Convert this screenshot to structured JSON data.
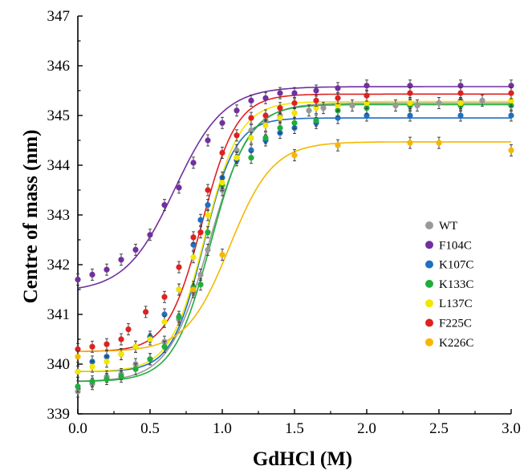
{
  "chart_data": {
    "type": "scatter",
    "title": "",
    "xlabel": "GdHCl (M)",
    "ylabel": "Centre of mass (nm)",
    "xlim": [
      0.0,
      3.0
    ],
    "ylim": [
      339,
      347
    ],
    "x_ticks": [
      "0.0",
      "0.5",
      "1.0",
      "1.5",
      "2.0",
      "2.5",
      "3.0"
    ],
    "y_ticks": [
      "339",
      "340",
      "341",
      "342",
      "343",
      "344",
      "345",
      "346",
      "347"
    ],
    "legend_position": "right-middle",
    "fit_curves": true,
    "series": [
      {
        "name": "WT",
        "color": "#999999",
        "x": [
          0.0,
          0.1,
          0.2,
          0.3,
          0.4,
          0.5,
          0.6,
          0.7,
          0.8,
          0.85,
          0.9,
          1.0,
          1.1,
          1.2,
          1.3,
          1.4,
          1.5,
          1.6,
          1.7,
          1.8,
          1.9,
          2.0,
          2.2,
          2.35,
          2.5,
          2.65,
          2.8,
          3.0
        ],
        "y": [
          339.45,
          339.6,
          339.75,
          339.8,
          340.0,
          340.1,
          340.45,
          340.9,
          341.45,
          341.8,
          342.3,
          343.5,
          344.3,
          344.7,
          344.9,
          345.0,
          345.05,
          345.1,
          345.15,
          345.2,
          345.2,
          345.25,
          345.2,
          345.2,
          345.25,
          345.3,
          345.3,
          345.3
        ],
        "fit": {
          "low": 339.65,
          "high": 345.25,
          "mid": 0.91,
          "slope": 0.14
        }
      },
      {
        "name": "F104C",
        "color": "#7030a0",
        "x": [
          0.0,
          0.1,
          0.2,
          0.3,
          0.4,
          0.5,
          0.6,
          0.7,
          0.8,
          0.9,
          1.0,
          1.1,
          1.2,
          1.3,
          1.4,
          1.5,
          1.65,
          1.8,
          2.0,
          2.3,
          2.65,
          3.0
        ],
        "y": [
          341.7,
          341.8,
          341.9,
          342.1,
          342.3,
          342.6,
          343.2,
          343.55,
          344.05,
          344.5,
          344.85,
          345.1,
          345.3,
          345.35,
          345.45,
          345.45,
          345.5,
          345.55,
          345.6,
          345.6,
          345.6,
          345.6
        ],
        "fit": {
          "low": 341.45,
          "high": 345.58,
          "mid": 0.67,
          "slope": 0.17
        }
      },
      {
        "name": "K107C",
        "color": "#1f6fc3",
        "x": [
          0.0,
          0.1,
          0.2,
          0.3,
          0.4,
          0.5,
          0.6,
          0.7,
          0.8,
          0.85,
          0.9,
          1.0,
          1.1,
          1.2,
          1.3,
          1.4,
          1.5,
          1.65,
          1.8,
          2.0,
          2.3,
          2.65,
          3.0
        ],
        "y": [
          339.85,
          340.05,
          340.15,
          340.2,
          340.35,
          340.55,
          341.0,
          341.5,
          342.4,
          342.9,
          343.2,
          343.75,
          344.1,
          344.3,
          344.5,
          344.65,
          344.75,
          344.85,
          344.95,
          345.0,
          345.0,
          345.0,
          345.0
        ],
        "fit": {
          "low": 339.85,
          "high": 344.95,
          "mid": 0.87,
          "slope": 0.11
        }
      },
      {
        "name": "K133C",
        "color": "#1fae3c",
        "x": [
          0.0,
          0.1,
          0.2,
          0.3,
          0.4,
          0.5,
          0.6,
          0.7,
          0.8,
          0.85,
          0.9,
          1.0,
          1.1,
          1.2,
          1.3,
          1.4,
          1.5,
          1.65,
          1.8,
          2.0,
          2.3,
          2.65,
          3.0
        ],
        "y": [
          339.55,
          339.65,
          339.7,
          339.75,
          339.9,
          340.1,
          340.35,
          340.95,
          341.55,
          341.6,
          342.65,
          343.6,
          344.15,
          344.15,
          344.55,
          344.75,
          344.85,
          344.9,
          345.1,
          345.15,
          345.2,
          345.2,
          345.2
        ],
        "fit": {
          "low": 339.65,
          "high": 345.22,
          "mid": 0.92,
          "slope": 0.13
        }
      },
      {
        "name": "L137C",
        "color": "#f2e600",
        "x": [
          0.0,
          0.1,
          0.2,
          0.3,
          0.4,
          0.5,
          0.6,
          0.7,
          0.8,
          0.9,
          1.0,
          1.1,
          1.2,
          1.3,
          1.4,
          1.5,
          1.65,
          1.8,
          2.0,
          2.3,
          2.65,
          3.0
        ],
        "y": [
          339.85,
          339.95,
          340.05,
          340.2,
          340.35,
          340.5,
          340.85,
          341.5,
          342.15,
          343.0,
          343.65,
          344.15,
          344.55,
          344.8,
          344.95,
          345.05,
          345.15,
          345.2,
          345.25,
          345.25,
          345.25,
          345.3
        ],
        "fit": {
          "low": 339.85,
          "high": 345.28,
          "mid": 0.88,
          "slope": 0.12
        }
      },
      {
        "name": "F225C",
        "color": "#e02020",
        "x": [
          0.0,
          0.1,
          0.2,
          0.3,
          0.35,
          0.47,
          0.6,
          0.7,
          0.8,
          0.85,
          0.9,
          1.0,
          1.1,
          1.2,
          1.3,
          1.4,
          1.5,
          1.65,
          1.8,
          2.0,
          2.3,
          2.65,
          3.0
        ],
        "y": [
          340.3,
          340.35,
          340.4,
          340.5,
          340.7,
          341.05,
          341.35,
          341.95,
          342.55,
          342.65,
          343.5,
          344.25,
          344.6,
          344.95,
          345.0,
          345.15,
          345.25,
          345.3,
          345.35,
          345.4,
          345.45,
          345.45,
          345.45
        ],
        "fit": {
          "low": 340.25,
          "high": 345.43,
          "mid": 0.86,
          "slope": 0.12
        }
      },
      {
        "name": "K226C",
        "color": "#f5b700",
        "x": [
          0.0,
          0.8,
          1.0,
          1.5,
          1.8,
          2.3,
          2.5,
          3.0
        ],
        "y": [
          340.15,
          341.5,
          342.2,
          344.2,
          344.4,
          344.45,
          344.45,
          344.3
        ],
        "fit": {
          "low": 340.25,
          "high": 344.47,
          "mid": 1.05,
          "slope": 0.15
        }
      }
    ]
  }
}
